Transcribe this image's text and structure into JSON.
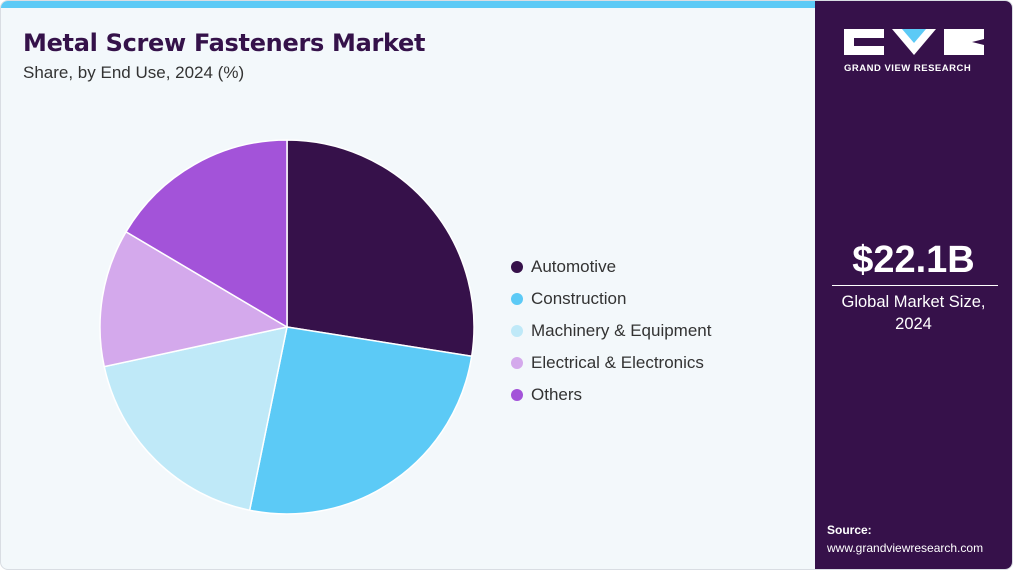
{
  "header": {
    "title": "Metal Screw Fasteners Market",
    "subtitle": "Share, by End Use, 2024 (%)"
  },
  "sidebar": {
    "brand": "GRAND VIEW RESEARCH",
    "market_value": "$22.1B",
    "market_caption_line1": "Global Market Size,",
    "market_caption_line2": "2024",
    "source_label": "Source:",
    "source_url": "www.grandviewresearch.com"
  },
  "colors": {
    "accent": "#5ccaf6",
    "sidebar_bg": "#36114a",
    "title": "#35124a"
  },
  "chart_data": {
    "type": "pie",
    "categories": [
      "Automotive",
      "Construction",
      "Machinery & Equipment",
      "Electrical & Electronics",
      "Others"
    ],
    "values": [
      27.5,
      25.7,
      18.4,
      11.9,
      16.5
    ],
    "colors": [
      "#36114a",
      "#5ccaf6",
      "#bfe9f8",
      "#d4a9ec",
      "#a353d9"
    ],
    "legend_position": "right"
  }
}
